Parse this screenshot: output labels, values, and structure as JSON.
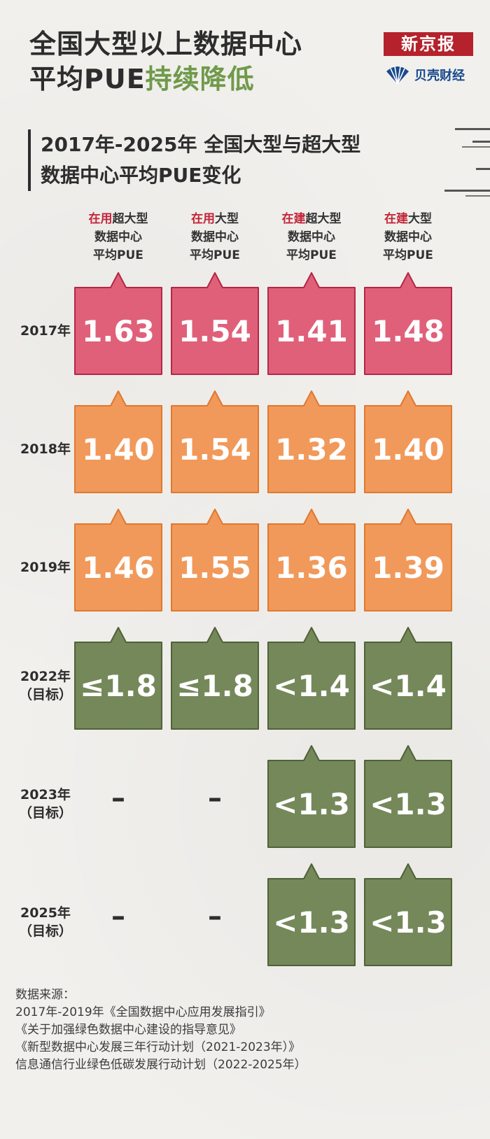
{
  "title": {
    "line1": "全国大型以上数据中心",
    "line2_plain": "平均PUE",
    "line2_highlight": "持续降低"
  },
  "brand": {
    "primary": "新京报",
    "secondary": "贝壳财经"
  },
  "colors": {
    "pink": "#e06079",
    "pink_border": "#b32845",
    "orange": "#f1995a",
    "orange_border": "#e0782e",
    "green": "#75885a",
    "green_border": "#4f6238",
    "accent_red": "#c2263a",
    "title_green": "#6f9a4a"
  },
  "chart_data": {
    "type": "table",
    "title_line1": "2017年-2025年 全国大型与超大型",
    "title_line2": "数据中心平均PUE变化",
    "columns": [
      {
        "prefix": "在用",
        "suffix": "超大型",
        "line2": "数据中心",
        "line3": "平均PUE"
      },
      {
        "prefix": "在用",
        "suffix": "大型",
        "line2": "数据中心",
        "line3": "平均PUE"
      },
      {
        "prefix": "在建",
        "suffix": "超大型",
        "line2": "数据中心",
        "line3": "平均PUE"
      },
      {
        "prefix": "在建",
        "suffix": "大型",
        "line2": "数据中心",
        "line3": "平均PUE"
      }
    ],
    "rows": [
      {
        "year": "2017年",
        "note": "",
        "color": "pink",
        "values": [
          "1.63",
          "1.54",
          "1.41",
          "1.48"
        ]
      },
      {
        "year": "2018年",
        "note": "",
        "color": "orange",
        "values": [
          "1.40",
          "1.54",
          "1.32",
          "1.40"
        ]
      },
      {
        "year": "2019年",
        "note": "",
        "color": "orange",
        "values": [
          "1.46",
          "1.55",
          "1.36",
          "1.39"
        ]
      },
      {
        "year": "2022年",
        "note": "（目标）",
        "color": "green",
        "values": [
          "≤1.8",
          "≤1.8",
          "<1.4",
          "<1.4"
        ]
      },
      {
        "year": "2023年",
        "note": "（目标）",
        "color": "green",
        "values": [
          "–",
          "–",
          "<1.3",
          "<1.3"
        ]
      },
      {
        "year": "2025年",
        "note": "（目标）",
        "color": "green",
        "values": [
          "–",
          "–",
          "<1.3",
          "<1.3"
        ]
      }
    ]
  },
  "source": {
    "heading": "数据来源：",
    "lines": [
      "2017年-2019年《全国数据中心应用发展指引》",
      "《关于加强绿色数据中心建设的指导意见》",
      "《新型数据中心发展三年行动计划（2021-2023年）》",
      "信息通信行业绿色低碳发展行动计划（2022-2025年）"
    ]
  }
}
